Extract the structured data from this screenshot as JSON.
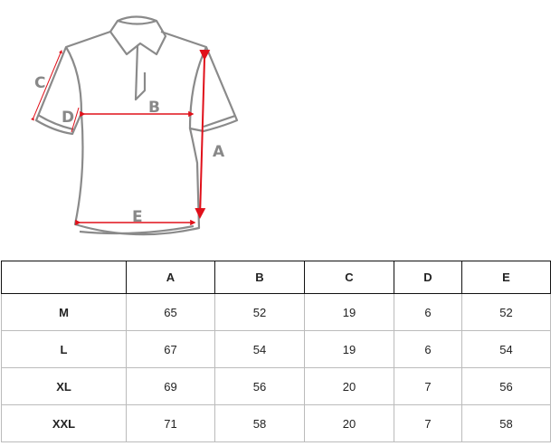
{
  "diagram": {
    "labels": {
      "A": "A",
      "B": "B",
      "C": "C",
      "D": "D",
      "E": "E"
    },
    "colors": {
      "outline": "#8a8a8a",
      "arrow": "#e0101a"
    }
  },
  "table": {
    "headers": [
      "",
      "A",
      "B",
      "C",
      "D",
      "E"
    ],
    "rows": [
      {
        "size": "M",
        "values": [
          "65",
          "52",
          "19",
          "6",
          "52"
        ]
      },
      {
        "size": "L",
        "values": [
          "67",
          "54",
          "19",
          "6",
          "54"
        ]
      },
      {
        "size": "XL",
        "values": [
          "69",
          "56",
          "20",
          "7",
          "56"
        ]
      },
      {
        "size": "XXL",
        "values": [
          "71",
          "58",
          "20",
          "7",
          "58"
        ]
      }
    ]
  }
}
